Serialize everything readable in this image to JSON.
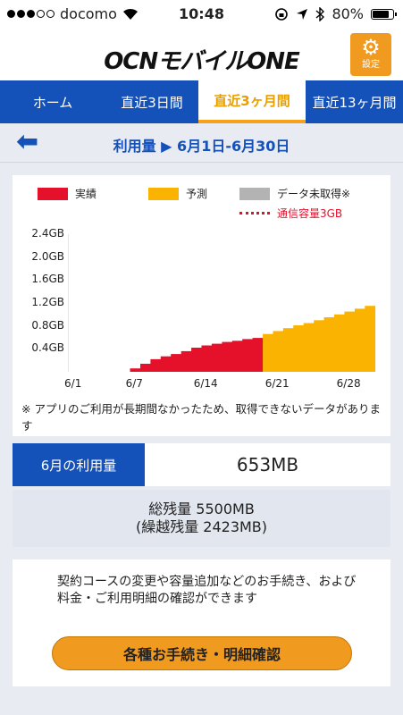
{
  "status_bar": {
    "signal_filled": 3,
    "signal_total": 5,
    "carrier": "docomo",
    "time": "10:48",
    "battery": "80%",
    "battery_level": 0.8
  },
  "header": {
    "logo": "OCNモバイルONE",
    "settings_label": "設定"
  },
  "tabs": [
    {
      "label": "ホーム",
      "active": false
    },
    {
      "label": "直近3日間",
      "active": false
    },
    {
      "label": "直近3ヶ月間",
      "active": true
    },
    {
      "label": "直近13ヶ月間",
      "active": false
    }
  ],
  "period": {
    "label": "利用量 ▶ 6月1日-6月30日"
  },
  "legend": {
    "actual": "実績",
    "predicted": "予測",
    "not_acquired": "データ未取得※",
    "capacity": "通信容量3GB"
  },
  "colors": {
    "actual": "#e5102a",
    "predicted": "#fab300",
    "not_acquired": "#b3b3b3",
    "brand_blue": "#1451b8",
    "accent_orange": "#f09a1f"
  },
  "chart_data": {
    "type": "bar",
    "x_unit": "day of June",
    "y_unit": "GB",
    "ylim": [
      0,
      2.4
    ],
    "yticks": [
      "2.4GB",
      "2.0GB",
      "1.6GB",
      "1.2GB",
      "0.8GB",
      "0.4GB"
    ],
    "xticks": [
      "6/1",
      "6/7",
      "6/14",
      "6/21",
      "6/28"
    ],
    "series": [
      {
        "name": "実績",
        "x": [
          7,
          8,
          9,
          10,
          11,
          12,
          13,
          14,
          15,
          16,
          17,
          18,
          19
        ],
        "values": [
          0.06,
          0.14,
          0.22,
          0.27,
          0.31,
          0.36,
          0.42,
          0.46,
          0.49,
          0.52,
          0.54,
          0.57,
          0.59
        ]
      },
      {
        "name": "予測",
        "x": [
          20,
          21,
          22,
          23,
          24,
          25,
          26,
          27,
          28,
          29,
          30
        ],
        "values": [
          0.66,
          0.71,
          0.76,
          0.81,
          0.85,
          0.9,
          0.95,
          1.0,
          1.05,
          1.1,
          1.15
        ]
      }
    ]
  },
  "note": "※ アプリのご利用が長期間なかったため、取得できないデータがあります",
  "usage": {
    "label": "6月の利用量",
    "value": "653MB"
  },
  "remaining": {
    "total": "総残量 5500MB",
    "carryover": "(繰越残量 2423MB)"
  },
  "procedures": {
    "text": "契約コースの変更や容量追加などのお手続き、および料金・ご利用明細の確認ができます",
    "button": "各種お手続き・明細確認"
  }
}
